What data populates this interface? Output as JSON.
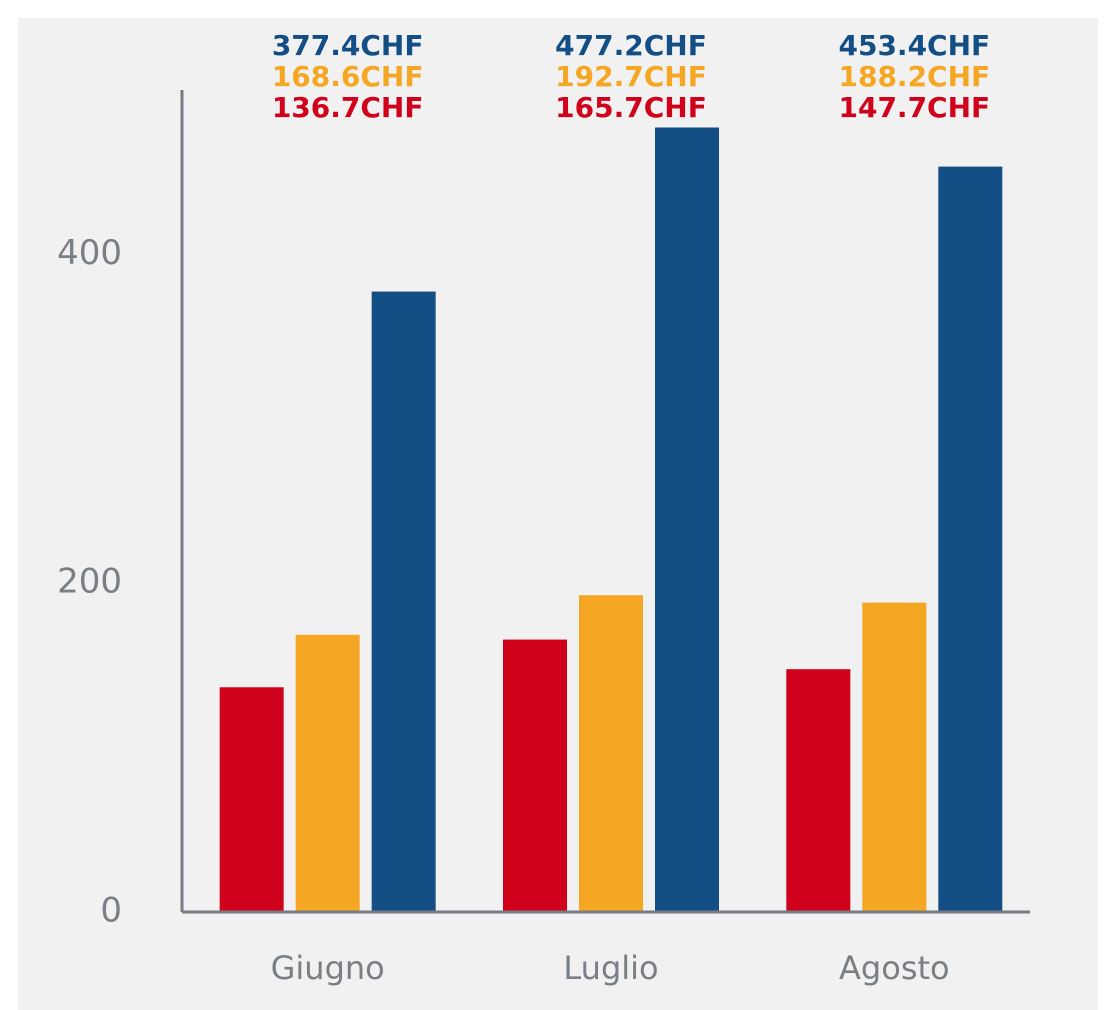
{
  "chart_data": {
    "type": "bar",
    "categories": [
      "Giugno",
      "Luglio",
      "Agosto"
    ],
    "series": [
      {
        "color": "#d0021b",
        "values": [
          136.7,
          165.7,
          147.7
        ],
        "value_labels": [
          "136.7CHF",
          "165.7CHF",
          "147.7CHF"
        ]
      },
      {
        "color": "#f5a623",
        "values": [
          168.6,
          192.7,
          188.2
        ],
        "value_labels": [
          "168.6CHF",
          "192.7CHF",
          "188.2CHF"
        ]
      },
      {
        "color": "#134f85",
        "values": [
          377.4,
          477.2,
          453.4
        ],
        "value_labels": [
          "377.4CHF",
          "477.2CHF",
          "453.4CHF"
        ]
      }
    ],
    "ylim": [
      0,
      500
    ],
    "yticks": [
      0,
      200,
      400
    ],
    "grid": false
  }
}
